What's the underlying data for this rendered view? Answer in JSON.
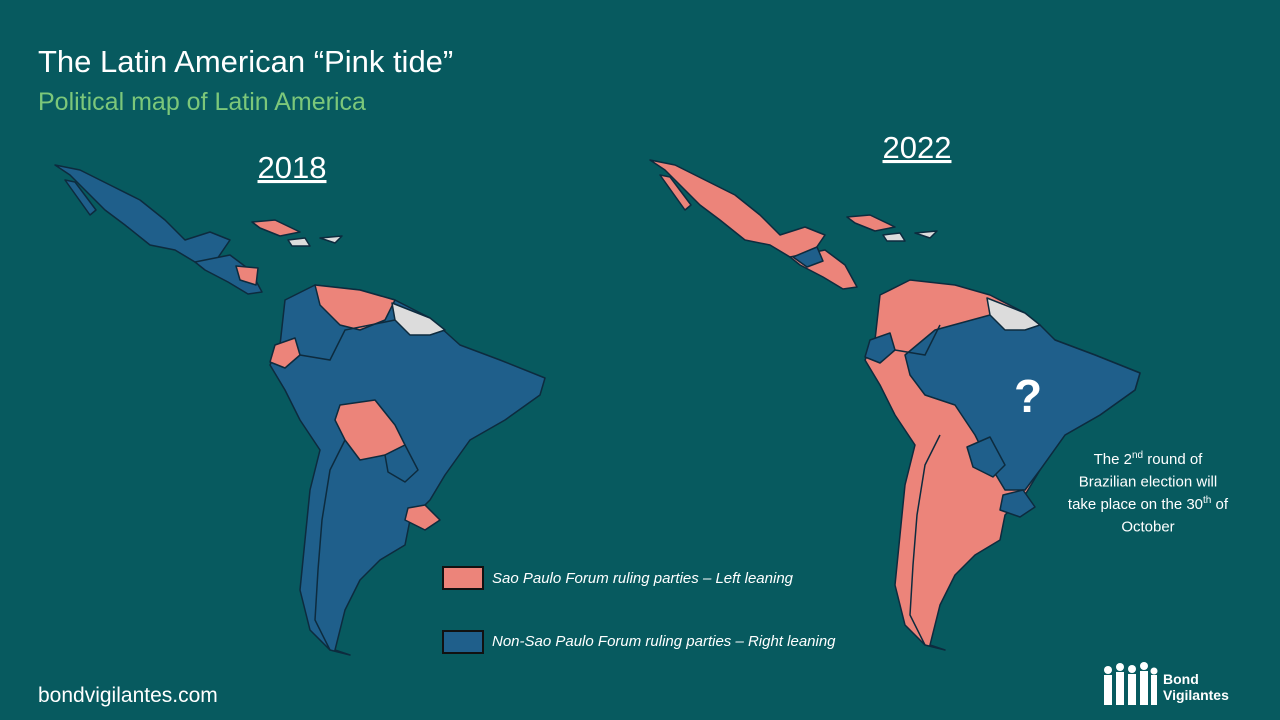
{
  "header": {
    "title": "The Latin American “Pink tide”",
    "subtitle": "Political map of Latin America"
  },
  "maps": [
    {
      "label": "2018"
    },
    {
      "label": "2022",
      "marker": "?"
    }
  ],
  "annotation": {
    "lines": [
      [
        "The 2",
        "nd",
        " round of"
      ],
      [
        "Brazilian election will"
      ],
      [
        "take place on the 30",
        "th",
        " of"
      ],
      [
        "October"
      ]
    ]
  },
  "legend": [
    "Sao Paulo Forum ruling parties – Left leaning",
    "Non-Sao Paulo Forum ruling parties – Right  leaning"
  ],
  "footer": "bondvigilantes.com",
  "logo": [
    "Bond",
    "Vigilantes"
  ]
}
